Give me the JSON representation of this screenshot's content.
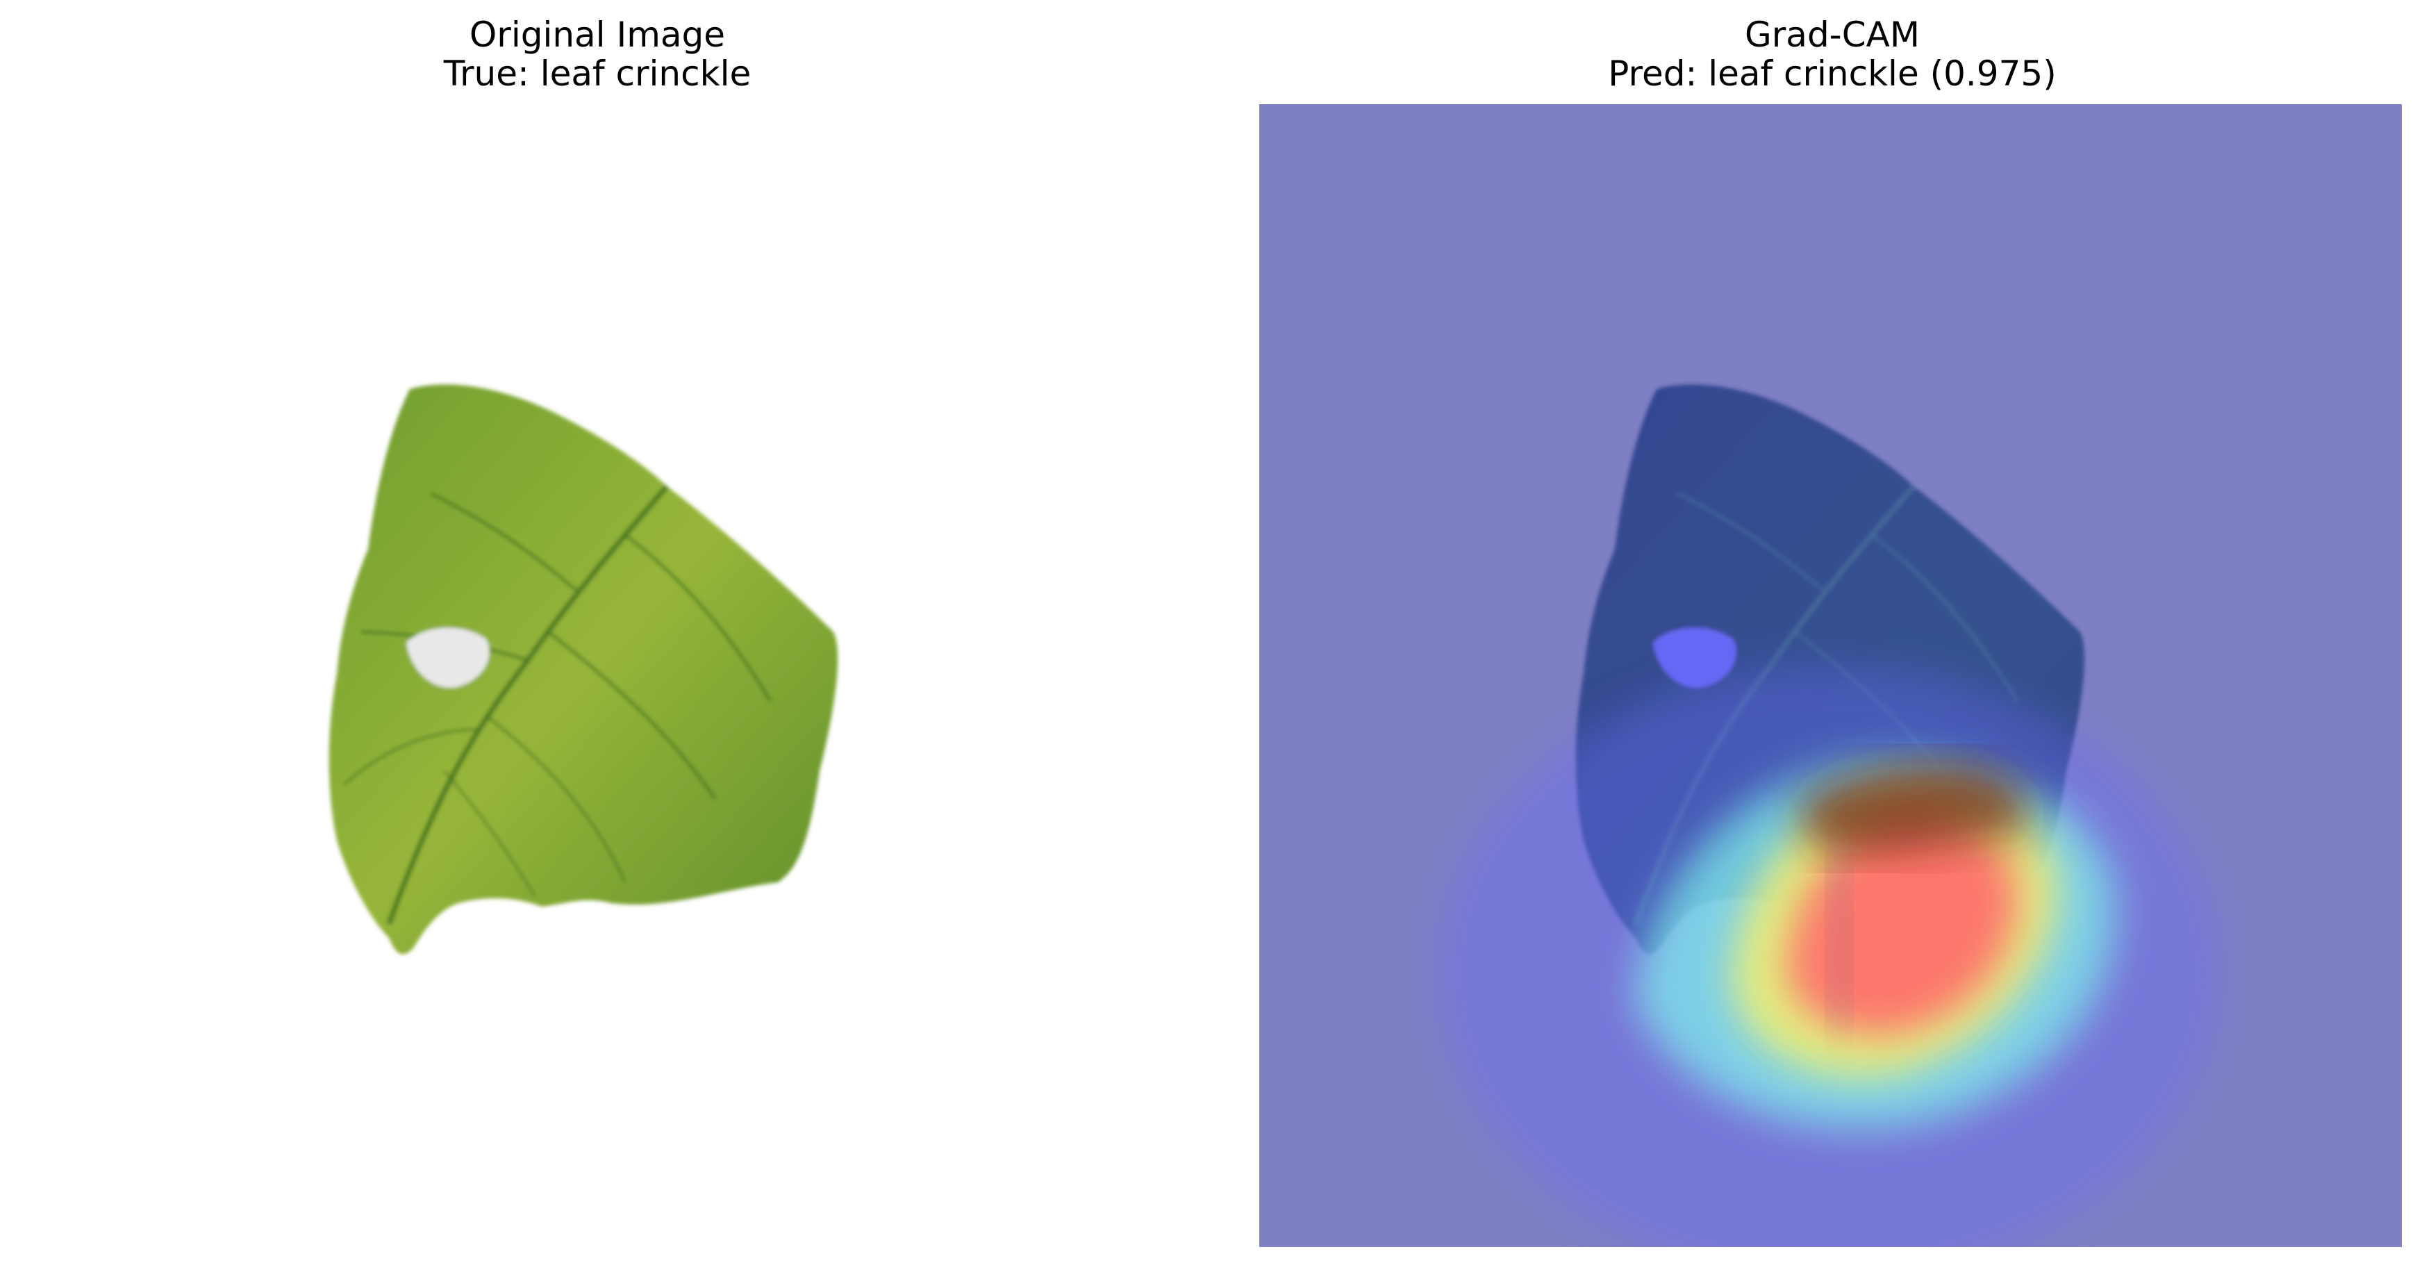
{
  "panels": {
    "original": {
      "title": "Original Image",
      "subtitle": "True: leaf crinckle"
    },
    "gradcam": {
      "title": "Grad-CAM",
      "subtitle": "Pred: leaf crinckle (0.975)"
    }
  },
  "colors": {
    "leaf_light": "#9cb83a",
    "leaf_dark": "#4f8a27",
    "leaf_vein": "#3c6e1e",
    "overlay_base": "#7f7fc4",
    "heat_red": "#ff6a6a",
    "heat_yellow": "#f6f36a",
    "heat_cyan": "#7ff3f0",
    "heat_blue": "#6b6bff"
  },
  "icons": {
    "leaf": "leaf-photo-icon"
  }
}
